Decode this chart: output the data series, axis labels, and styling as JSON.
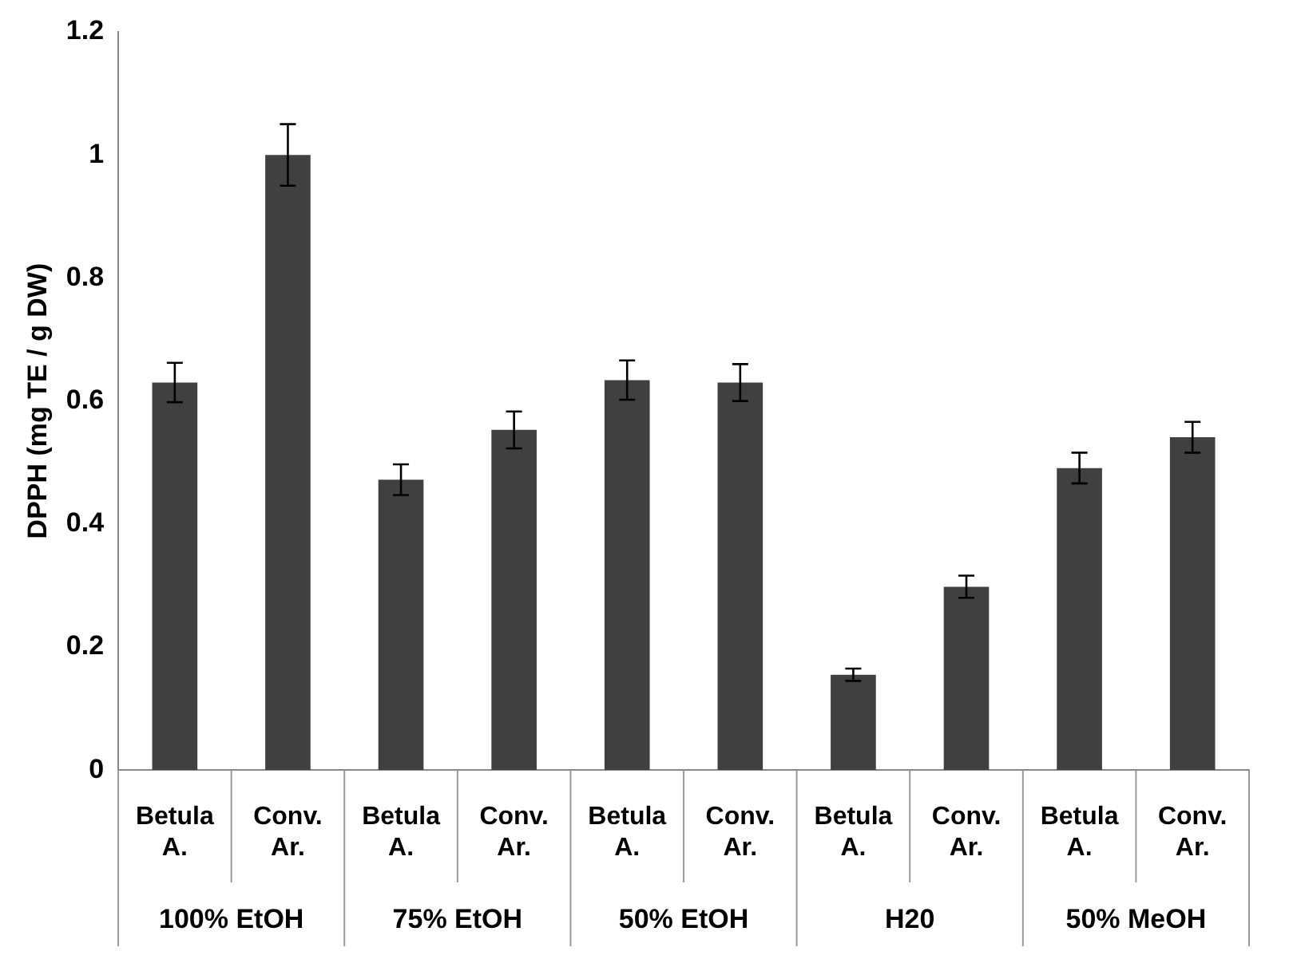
{
  "chart_data": {
    "type": "bar",
    "ylabel": "DPPH (mg TE / g DW)",
    "categories": [
      "Betula A.",
      "Conv. Ar.",
      "Betula A.",
      "Conv. Ar.",
      "Betula A.",
      "Conv. Ar.",
      "Betula A.",
      "Conv. Ar.",
      "Betula A.",
      "Conv. Ar."
    ],
    "values": [
      0.63,
      1.0,
      0.472,
      0.553,
      0.634,
      0.63,
      0.155,
      0.298,
      0.491,
      0.541
    ],
    "errors": [
      0.032,
      0.05,
      0.025,
      0.03,
      0.032,
      0.03,
      0.01,
      0.018,
      0.025,
      0.025
    ],
    "color": "#404040",
    "ylim": [
      0,
      1.2
    ],
    "yticks": [
      0,
      0.2,
      0.4,
      0.6,
      0.8,
      1,
      1.2
    ],
    "annotations": [
      "100% EtOH",
      "75% EtOH",
      "50% EtOH",
      "H20",
      "50% MeOH"
    ]
  }
}
